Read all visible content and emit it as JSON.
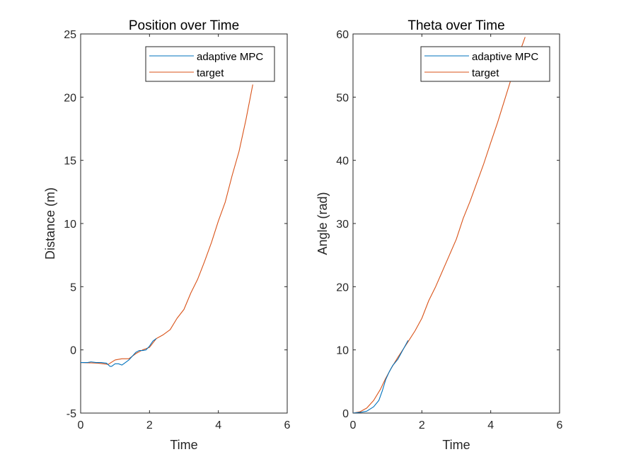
{
  "chart_data": [
    {
      "type": "line",
      "title": "Position over Time",
      "xlabel": "Time",
      "ylabel": "Distance (m)",
      "xlim": [
        0,
        6
      ],
      "ylim": [
        -5,
        25
      ],
      "xticks": [
        0,
        2,
        4,
        6
      ],
      "yticks": [
        -5,
        0,
        5,
        10,
        15,
        20,
        25
      ],
      "xtick_labels": [
        "0",
        "2",
        "4",
        "6"
      ],
      "ytick_labels": [
        "-5",
        "0",
        "5",
        "10",
        "15",
        "20",
        "25"
      ],
      "grid": false,
      "legend": "top-right",
      "series": [
        {
          "name": "adaptive MPC",
          "color": "#0072BD",
          "x": [
            0,
            0.2,
            0.3,
            0.45,
            0.6,
            0.75,
            0.85,
            0.9,
            1.0,
            1.1,
            1.2,
            1.3,
            1.4,
            1.5,
            1.6,
            1.7,
            1.8,
            1.9,
            2.0,
            2.1,
            2.2
          ],
          "y": [
            -1.0,
            -1.0,
            -0.95,
            -1.0,
            -1.0,
            -1.05,
            -1.3,
            -1.3,
            -1.1,
            -1.1,
            -1.2,
            -1.0,
            -0.8,
            -0.5,
            -0.2,
            -0.05,
            -0.05,
            0.0,
            0.3,
            0.7,
            0.9
          ]
        },
        {
          "name": "target",
          "color": "#D95319",
          "x": [
            0,
            0.5,
            0.8,
            1.0,
            1.2,
            1.4,
            1.6,
            1.8,
            2.0,
            2.2,
            2.4,
            2.6,
            2.8,
            3.0,
            3.2,
            3.4,
            3.6,
            3.8,
            4.0,
            4.2,
            4.4,
            4.6,
            4.8,
            5.0
          ],
          "y": [
            -1.0,
            -1.05,
            -1.15,
            -0.8,
            -0.7,
            -0.7,
            -0.3,
            0.0,
            0.2,
            0.9,
            1.2,
            1.6,
            2.5,
            3.2,
            4.5,
            5.6,
            7.0,
            8.5,
            10.2,
            11.7,
            13.8,
            15.7,
            18.2,
            21.0
          ]
        }
      ]
    },
    {
      "type": "line",
      "title": "Theta over Time",
      "xlabel": "Time",
      "ylabel": "Angle (rad)",
      "xlim": [
        0,
        6
      ],
      "ylim": [
        0,
        60
      ],
      "xticks": [
        0,
        2,
        4,
        6
      ],
      "yticks": [
        0,
        10,
        20,
        30,
        40,
        50,
        60
      ],
      "xtick_labels": [
        "0",
        "2",
        "4",
        "6"
      ],
      "ytick_labels": [
        "0",
        "10",
        "20",
        "30",
        "40",
        "50",
        "60"
      ],
      "grid": false,
      "legend": "top-right",
      "series": [
        {
          "name": "adaptive MPC",
          "color": "#0072BD",
          "x": [
            0,
            0.2,
            0.4,
            0.6,
            0.75,
            0.85,
            0.95,
            1.05,
            1.15,
            1.3,
            1.45,
            1.6
          ],
          "y": [
            0,
            0.1,
            0.3,
            1.0,
            2.0,
            3.5,
            5.3,
            6.5,
            7.5,
            8.5,
            10.0,
            11.5
          ]
        },
        {
          "name": "target",
          "color": "#D95319",
          "x": [
            0,
            0.2,
            0.4,
            0.6,
            0.8,
            0.95,
            1.1,
            1.3,
            1.6,
            1.8,
            2.0,
            2.2,
            2.4,
            2.6,
            2.8,
            3.0,
            3.2,
            3.4,
            3.6,
            3.8,
            4.0,
            4.2,
            4.4,
            4.6,
            4.8,
            5.0
          ],
          "y": [
            0,
            0.2,
            0.8,
            2.0,
            3.8,
            5.5,
            7.0,
            8.8,
            11.3,
            13.0,
            15.0,
            17.8,
            20.0,
            22.5,
            25.0,
            27.5,
            30.8,
            33.5,
            36.5,
            39.5,
            42.8,
            46.0,
            49.5,
            53.0,
            56.5,
            59.5
          ]
        }
      ]
    }
  ]
}
